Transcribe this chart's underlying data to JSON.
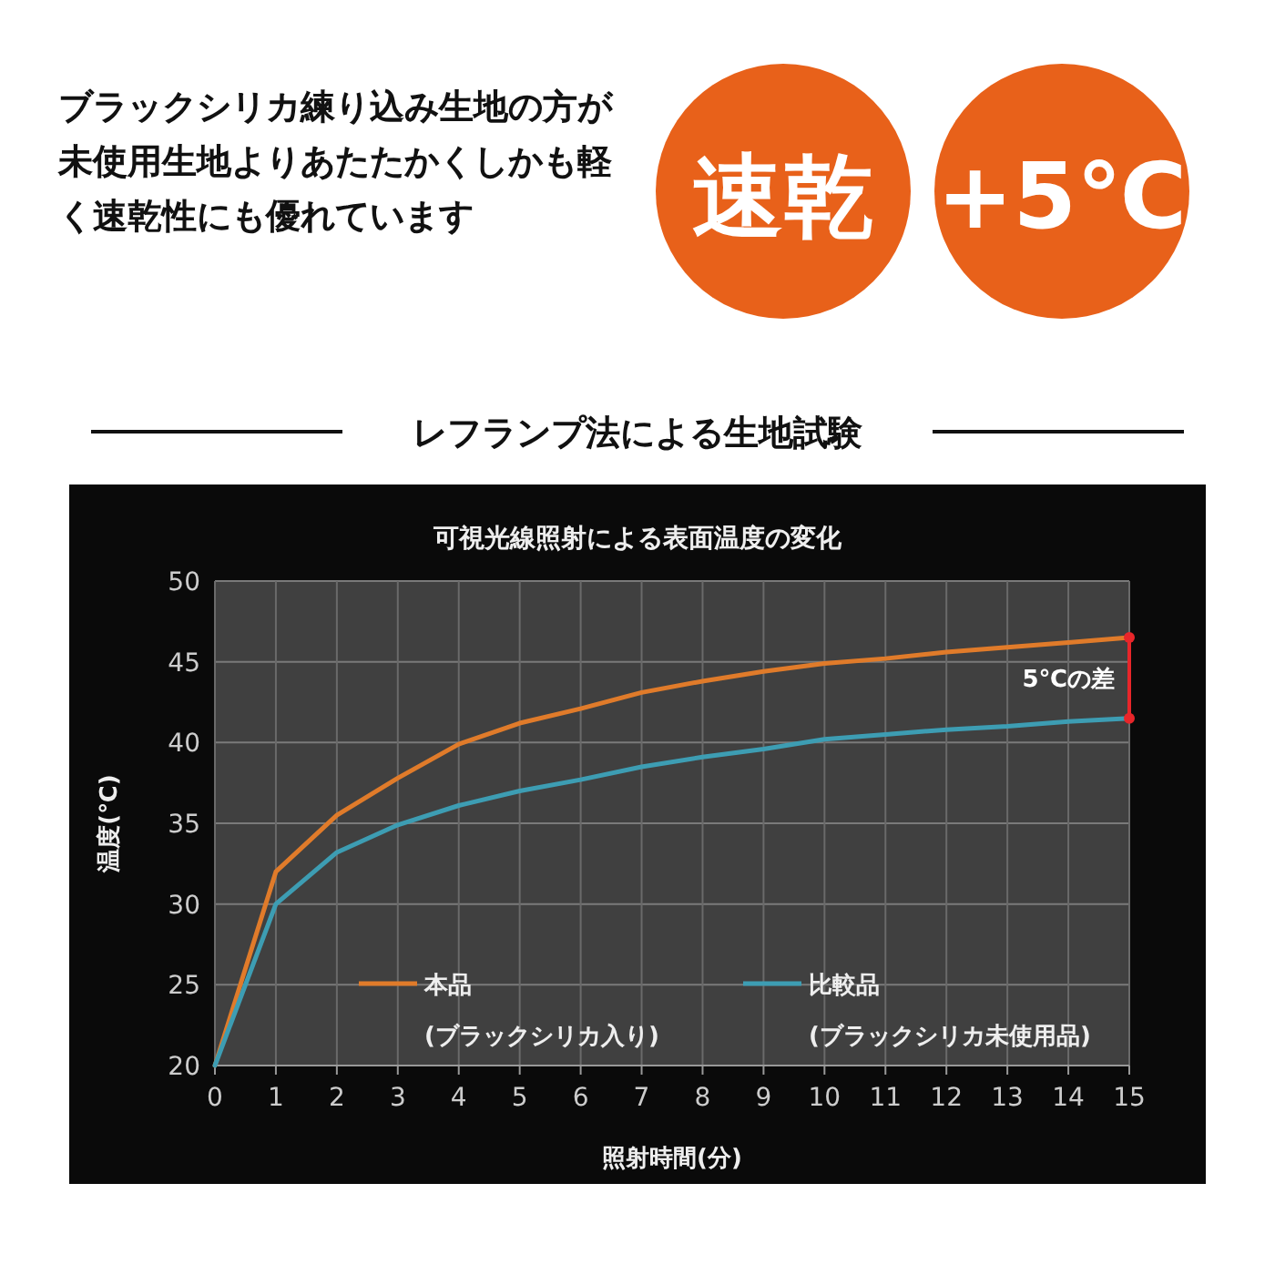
{
  "chart_data": {
    "type": "line",
    "title": "可視光線照射による表面温度の変化",
    "subtitle": "レフランプ法による生地試験",
    "xlabel": "照射時間(分)",
    "ylabel": "温度(℃)",
    "x": [
      0,
      1,
      2,
      3,
      4,
      5,
      6,
      7,
      8,
      9,
      10,
      11,
      12,
      13,
      14,
      15
    ],
    "xlim": [
      0,
      15
    ],
    "xticks": [
      0,
      1,
      2,
      3,
      4,
      5,
      6,
      7,
      8,
      9,
      10,
      11,
      12,
      13,
      14,
      15
    ],
    "ylim": [
      20,
      50
    ],
    "yticks": [
      20,
      25,
      30,
      35,
      40,
      45,
      50
    ],
    "grid": true,
    "legend": "bottom",
    "marker": "none",
    "line_style": "solid",
    "series": [
      {
        "name": "本品 (ブラックシリカ入り)",
        "color": "#e07b2a",
        "values": [
          20,
          32,
          35.5,
          37.8,
          39.9,
          41.2,
          42.1,
          43.1,
          43.8,
          44.4,
          44.9,
          45.2,
          45.6,
          45.9,
          46.2,
          46.5
        ]
      },
      {
        "name": "比較品 (ブラックシリカ未使用品)",
        "color": "#3d9db3",
        "values": [
          20,
          30,
          33.2,
          34.9,
          36.1,
          37,
          37.7,
          38.5,
          39.1,
          39.6,
          40.2,
          40.5,
          40.8,
          41,
          41.3,
          41.5
        ]
      }
    ],
    "annotations": [
      "ブラックシリカ練り込み生地の方が未使用生地よりあたたかくしかも軽く速乾性にも優れています",
      "速乾",
      "+5℃",
      "5℃の差"
    ]
  }
}
